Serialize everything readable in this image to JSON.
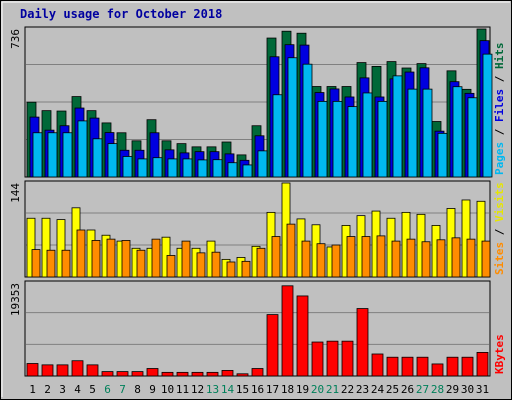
{
  "chart_data": {
    "type": "bar",
    "title": "Daily usage for October 2018",
    "days": [
      "1",
      "2",
      "3",
      "4",
      "5",
      "6",
      "7",
      "8",
      "9",
      "10",
      "11",
      "12",
      "13",
      "14",
      "15",
      "16",
      "17",
      "18",
      "19",
      "20",
      "21",
      "22",
      "23",
      "24",
      "25",
      "26",
      "27",
      "28",
      "29",
      "30",
      "31"
    ],
    "weekend_days": [
      "6",
      "7",
      "13",
      "14",
      "20",
      "21",
      "27",
      "28"
    ],
    "panels": [
      {
        "id": "top",
        "tick_label": "736",
        "ymax": 736,
        "series": [
          {
            "name": "Hits",
            "color": "#006838",
            "values": [
              372,
              330,
              328,
              400,
              330,
              269,
              220,
              180,
              285,
              180,
              166,
              150,
              150,
              174,
              110,
              255,
              691,
              725,
              715,
              450,
              450,
              450,
              569,
              550,
              574,
              542,
              564,
              276,
              528,
              436,
              736
            ]
          },
          {
            "name": "Files",
            "color": "#0000e0",
            "values": [
              298,
              233,
              255,
              343,
              293,
              221,
              133,
              133,
              220,
              135,
              120,
              126,
              126,
              115,
              83,
              205,
              598,
              658,
              656,
              420,
              438,
              398,
              493,
              398,
              488,
              522,
              543,
              228,
              474,
              416,
              678
            ]
          },
          {
            "name": "Pages",
            "color": "#00b8f0",
            "values": [
              220,
              220,
              220,
              279,
              190,
              166,
              102,
              90,
              96,
              90,
              90,
              85,
              86,
              71,
              60,
              130,
              409,
              593,
              561,
              376,
              376,
              350,
              418,
              376,
              503,
              437,
              437,
              217,
              449,
              394,
              611
            ]
          }
        ]
      },
      {
        "id": "middle",
        "tick_label": "144",
        "ymax": 144,
        "series": [
          {
            "name": "Visits",
            "color": "#ffff00",
            "values": [
              90,
              90,
              88,
              106,
              72,
              64,
              55,
              44,
              44,
              61,
              44,
              44,
              55,
              27,
              30,
              47,
              99,
              144,
              89,
              80,
              46,
              79,
              94,
              101,
              90,
              99,
              96,
              79,
              105,
              118,
              116
            ]
          },
          {
            "name": "Sites",
            "color": "#ff8c00",
            "values": [
              42,
              41,
              41,
              72,
              56,
              58,
              56,
              41,
              58,
              33,
              55,
              37,
              38,
              23,
              24,
              44,
              62,
              81,
              55,
              51,
              49,
              62,
              62,
              63,
              55,
              58,
              54,
              57,
              60,
              58,
              55
            ]
          }
        ]
      },
      {
        "id": "bottom",
        "tick_label": "19353",
        "ymax": 19353,
        "series": [
          {
            "name": "KBytes",
            "color": "#ff0000",
            "values": [
              2600,
              2320,
              2320,
              3180,
              2320,
              920,
              920,
              920,
              1560,
              760,
              760,
              760,
              760,
              1160,
              460,
              1560,
              12780,
              18770,
              16660,
              7070,
              7250,
              7250,
              14040,
              4580,
              3910,
              3910,
              3910,
              2510,
              3910,
              3910,
              4910
            ]
          }
        ]
      }
    ]
  }
}
